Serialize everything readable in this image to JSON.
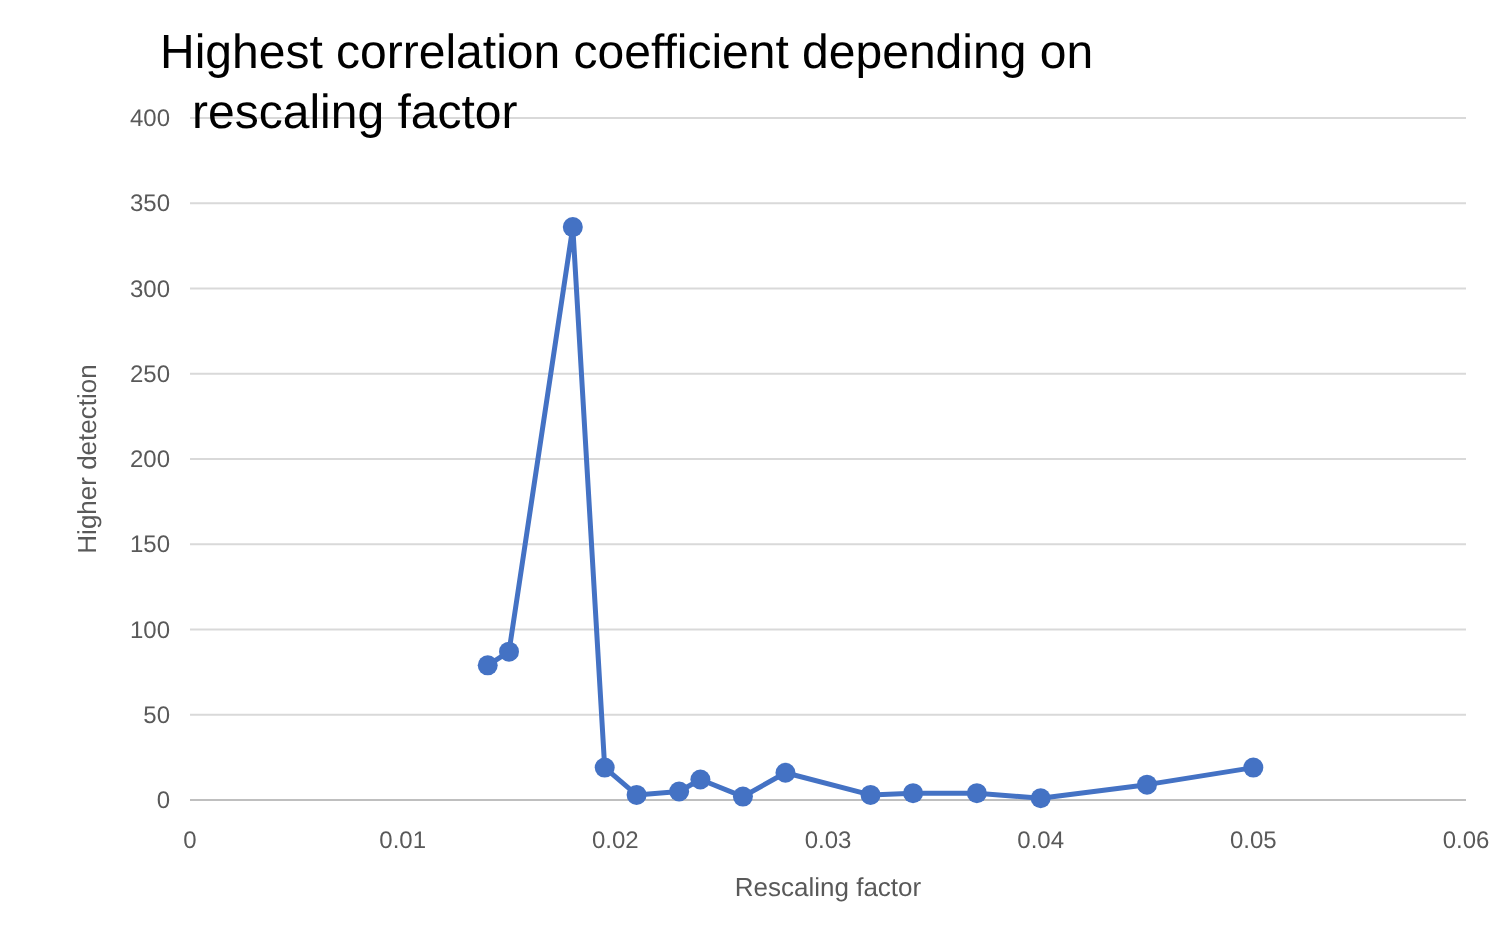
{
  "chart_data": {
    "type": "line",
    "title": "Highest correlation coefficient depending on rescaling factor",
    "xlabel": "Rescaling factor",
    "ylabel": "Higher detection",
    "x": [
      0.014,
      0.015,
      0.018,
      0.0195,
      0.021,
      0.023,
      0.024,
      0.026,
      0.028,
      0.032,
      0.034,
      0.037,
      0.04,
      0.045,
      0.05
    ],
    "series": [
      {
        "color": "#4472c4",
        "values": [
          79,
          87,
          336,
          19,
          3,
          5,
          12,
          2,
          16,
          3,
          4,
          4,
          1,
          9,
          19
        ]
      }
    ],
    "xlim": [
      0,
      0.06
    ],
    "xticks": [
      0,
      0.01,
      0.02,
      0.03,
      0.04,
      0.05,
      0.06
    ],
    "ylim": [
      0,
      400
    ],
    "yticks": [
      0,
      50,
      100,
      150,
      200,
      250,
      300,
      350,
      400
    ],
    "grid": "y",
    "marker": "circle",
    "line_style": "solid"
  }
}
